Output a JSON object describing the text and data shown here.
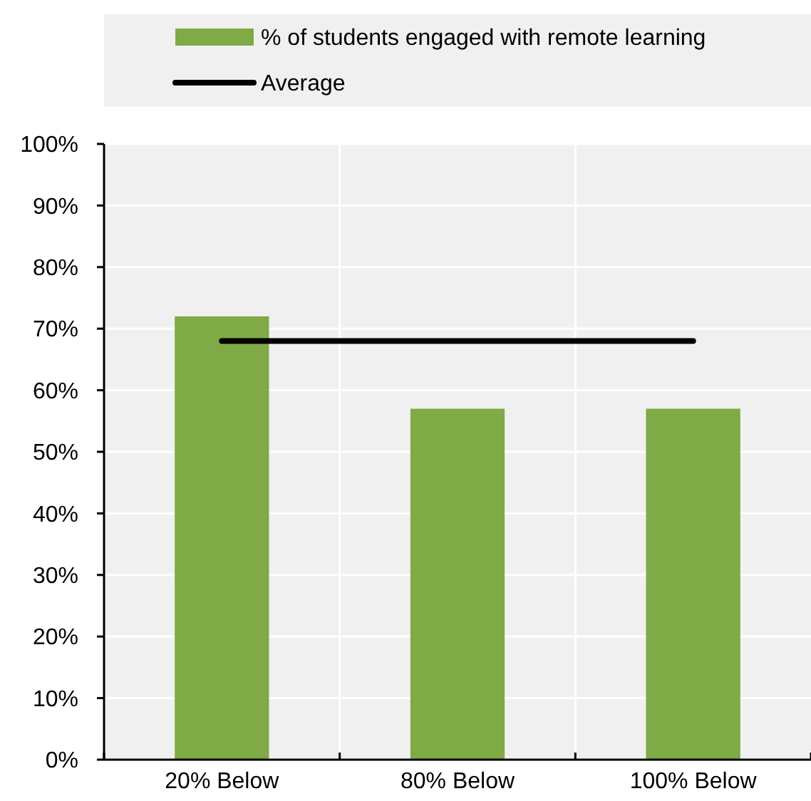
{
  "chart_data": {
    "type": "bar",
    "categories": [
      "20% Below",
      "80% Below",
      "100% Below"
    ],
    "series": [
      {
        "name": "% of students engaged with remote learning",
        "color": "#7faa45",
        "values": [
          72,
          57,
          57
        ]
      },
      {
        "name": "Average",
        "type": "line",
        "color": "#000000",
        "values": [
          68,
          68,
          68
        ]
      }
    ],
    "ylim": [
      0,
      100
    ],
    "yticks": [
      {
        "value": 0,
        "label": "0%"
      },
      {
        "value": 10,
        "label": "10%"
      },
      {
        "value": 20,
        "label": "20%"
      },
      {
        "value": 30,
        "label": "30%"
      },
      {
        "value": 40,
        "label": "40%"
      },
      {
        "value": 50,
        "label": "50%"
      },
      {
        "value": 60,
        "label": "60%"
      },
      {
        "value": 70,
        "label": "70%"
      },
      {
        "value": 80,
        "label": "80%"
      },
      {
        "value": 90,
        "label": "90%"
      },
      {
        "value": 100,
        "label": "100%"
      }
    ],
    "grid": true,
    "legend": "top",
    "marker": "none",
    "line_style": "solid"
  }
}
